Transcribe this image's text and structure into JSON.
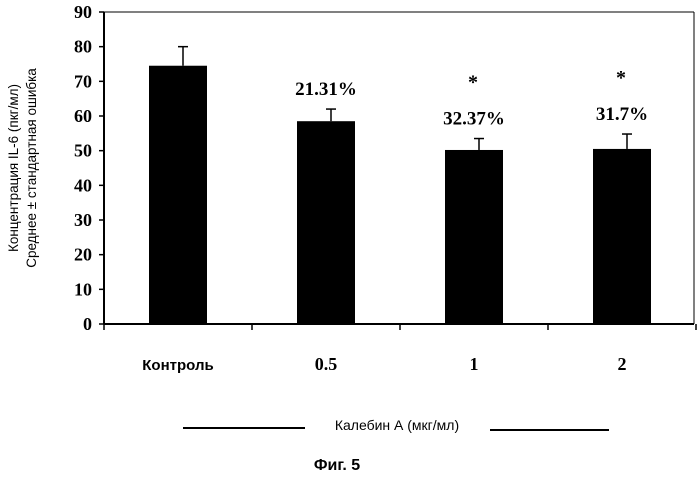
{
  "chart_data": {
    "type": "bar",
    "categories": [
      "Контроль",
      "0.5",
      "1",
      "2"
    ],
    "values": [
      74.5,
      58.5,
      50.2,
      50.5
    ],
    "errors": [
      5.5,
      3.5,
      3.3,
      4.3
    ],
    "labels": [
      "",
      "21.31%",
      "32.37%",
      "31.7%"
    ],
    "significance": [
      "",
      "",
      "*",
      "*"
    ],
    "ylabel_line1": "Концентрация IL-6 (пкг/мл)",
    "ylabel_line2": "Среднее ± стандартная ошибка",
    "xlabel": "Калебин А (мкг/мл)",
    "ylim": [
      0,
      90
    ],
    "yticks": [
      0,
      10,
      20,
      30,
      40,
      50,
      60,
      70,
      80,
      90
    ],
    "bar_color": "#000000",
    "grid": false
  },
  "caption": "Фиг. 5"
}
